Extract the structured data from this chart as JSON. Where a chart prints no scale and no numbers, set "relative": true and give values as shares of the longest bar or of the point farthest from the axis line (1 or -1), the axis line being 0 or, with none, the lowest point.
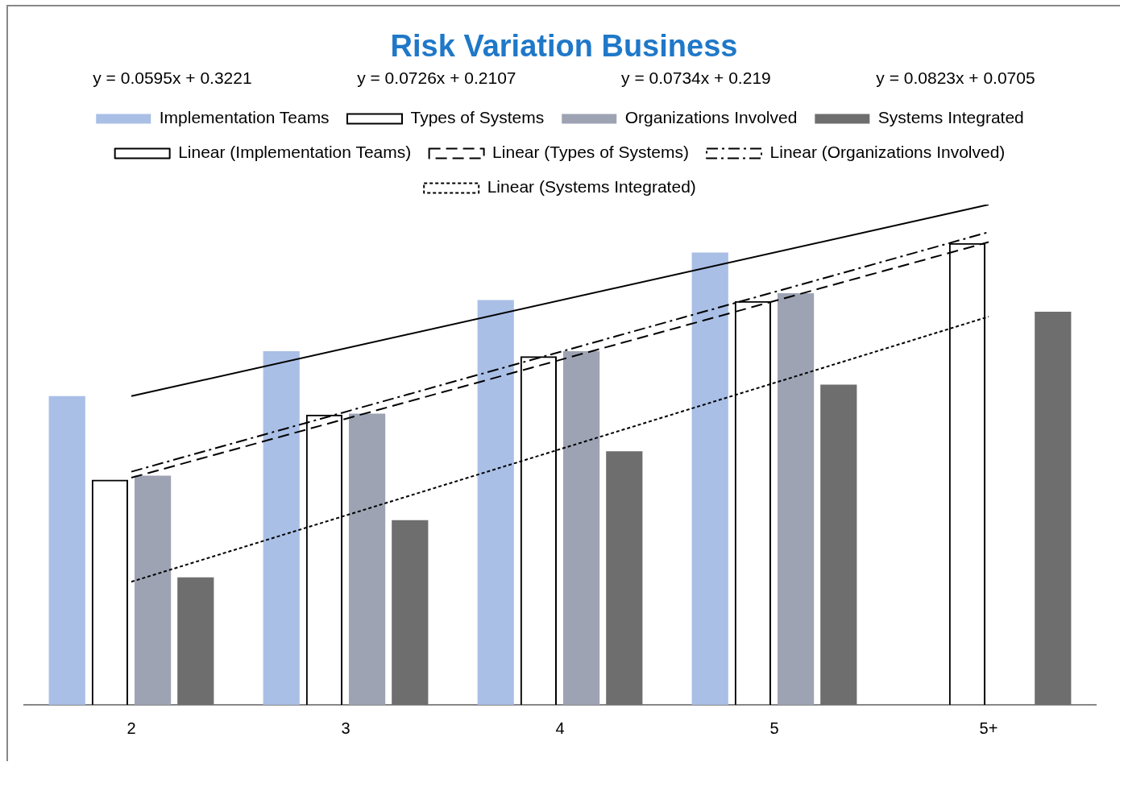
{
  "chart_data": {
    "type": "bar",
    "title": "Risk Variation Business",
    "relative": true,
    "categories": [
      "2",
      "3",
      "4",
      "5",
      "5+"
    ],
    "series": [
      {
        "name": "Implementation Teams",
        "color": "#a9bfe6",
        "values": [
          0.617,
          0.707,
          0.809,
          0.904,
          null
        ]
      },
      {
        "name": "Types of Systems",
        "color": "#000000",
        "values": [
          0.45,
          0.58,
          0.697,
          0.807,
          0.923
        ]
      },
      {
        "name": "Organizations Involved",
        "color": "#9ea3b4",
        "values": [
          0.458,
          0.582,
          0.707,
          0.823,
          null
        ]
      },
      {
        "name": "Systems Integrated",
        "color": "#6e6e6e",
        "values": [
          0.255,
          0.369,
          0.507,
          0.64,
          0.786
        ]
      },
      {
        "name": "Linear (Implementation Teams)",
        "type": "line",
        "color": "#000000",
        "line_style": "solid",
        "x": [
          "2",
          "5+"
        ],
        "values": [
          0.617,
          1.0
        ]
      },
      {
        "name": "Linear (Types of Systems)",
        "type": "line",
        "color": "#000000",
        "line_style": "dashed",
        "x": [
          "2",
          "5+"
        ],
        "values": [
          0.454,
          0.925
        ]
      },
      {
        "name": "Linear (Organizations Involved)",
        "type": "line",
        "color": "#000000",
        "line_style": "dashdot",
        "x": [
          "2",
          "5+"
        ],
        "values": [
          0.466,
          0.945
        ]
      },
      {
        "name": "Linear (Systems Integrated)",
        "type": "line",
        "color": "#000000",
        "line_style": "dotted",
        "x": [
          "2",
          "5+"
        ],
        "values": [
          0.246,
          0.776
        ]
      }
    ],
    "annotations": [
      "y = 0.0595x + 0.3221",
      "y = 0.0726x + 0.2107",
      "y = 0.0734x + 0.219",
      "y = 0.0823x + 0.0705"
    ],
    "legend": "top",
    "grid": false,
    "marker": "none"
  }
}
